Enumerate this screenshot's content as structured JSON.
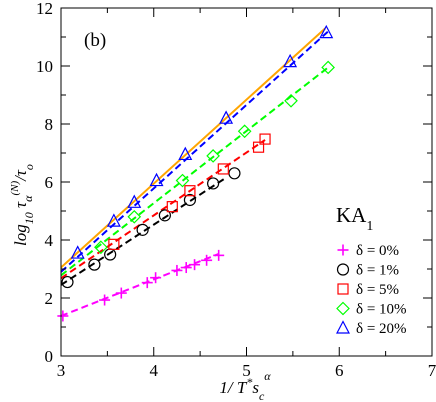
{
  "chart_data": {
    "type": "scatter",
    "panel_label": "(b)",
    "xlabel": "1/ T*s_c^α",
    "ylabel": "log10 τα(N)/τo",
    "xlim": [
      3,
      7
    ],
    "ylim": [
      0,
      12
    ],
    "x_ticks": [
      "3",
      "4",
      "5",
      "6",
      "7"
    ],
    "y_ticks": [
      "0",
      "2",
      "4",
      "6",
      "8",
      "10",
      "12"
    ],
    "legend_title": "KA",
    "legend_title_sub": "1",
    "legend_position": "lower-right",
    "grid": false,
    "series": [
      {
        "name": "δ = 0%",
        "marker": "plus",
        "color": "#ff00ff",
        "x": [
          3.02,
          3.47,
          3.65,
          3.93,
          4.02,
          4.25,
          4.35,
          4.44,
          4.57,
          4.7
        ],
        "y": [
          1.38,
          1.93,
          2.17,
          2.53,
          2.7,
          2.95,
          3.05,
          3.15,
          3.3,
          3.47
        ],
        "fit": {
          "x": [
            3.0,
            4.7
          ],
          "y": [
            1.38,
            3.52
          ]
        }
      },
      {
        "name": "δ = 1%",
        "marker": "circle",
        "color": "#000000",
        "x": [
          3.07,
          3.36,
          3.53,
          3.88,
          4.12,
          4.39,
          4.64,
          4.87
        ],
        "y": [
          2.55,
          3.15,
          3.5,
          4.35,
          4.85,
          5.38,
          5.95,
          6.3
        ],
        "fit": {
          "x": [
            3.0,
            4.78
          ],
          "y": [
            2.45,
            6.15
          ]
        }
      },
      {
        "name": "δ = 5%",
        "marker": "square",
        "color": "#ff0000",
        "x": [
          3.57,
          4.2,
          4.39,
          4.75,
          5.13,
          5.2
        ],
        "y": [
          3.85,
          5.15,
          5.7,
          6.45,
          7.2,
          7.48
        ],
        "fit": {
          "x": [
            3.0,
            5.2
          ],
          "y": [
            2.68,
            7.45
          ]
        }
      },
      {
        "name": "δ = 10%",
        "marker": "diamond",
        "color": "#00ff00",
        "x": [
          3.43,
          3.79,
          4.31,
          4.64,
          4.98,
          5.48,
          5.88
        ],
        "y": [
          3.75,
          4.8,
          6.05,
          6.9,
          7.75,
          8.8,
          9.95
        ],
        "fit": {
          "x": [
            3.0,
            5.9
          ],
          "y": [
            2.78,
            10.0
          ]
        }
      },
      {
        "name": "δ = 20%",
        "marker": "triangle",
        "color": "#0000ff",
        "x": [
          3.18,
          3.57,
          3.79,
          4.03,
          4.34,
          4.78,
          5.47,
          5.86
        ],
        "y": [
          3.55,
          4.65,
          5.3,
          6.05,
          6.95,
          8.2,
          10.15,
          11.15
        ],
        "fit": {
          "x": [
            3.0,
            5.9
          ],
          "y": [
            2.9,
            11.25
          ]
        }
      }
    ],
    "reference_line": {
      "color": "#ffa500",
      "x": [
        3.0,
        5.85
      ],
      "y": [
        3.05,
        11.3
      ]
    }
  }
}
